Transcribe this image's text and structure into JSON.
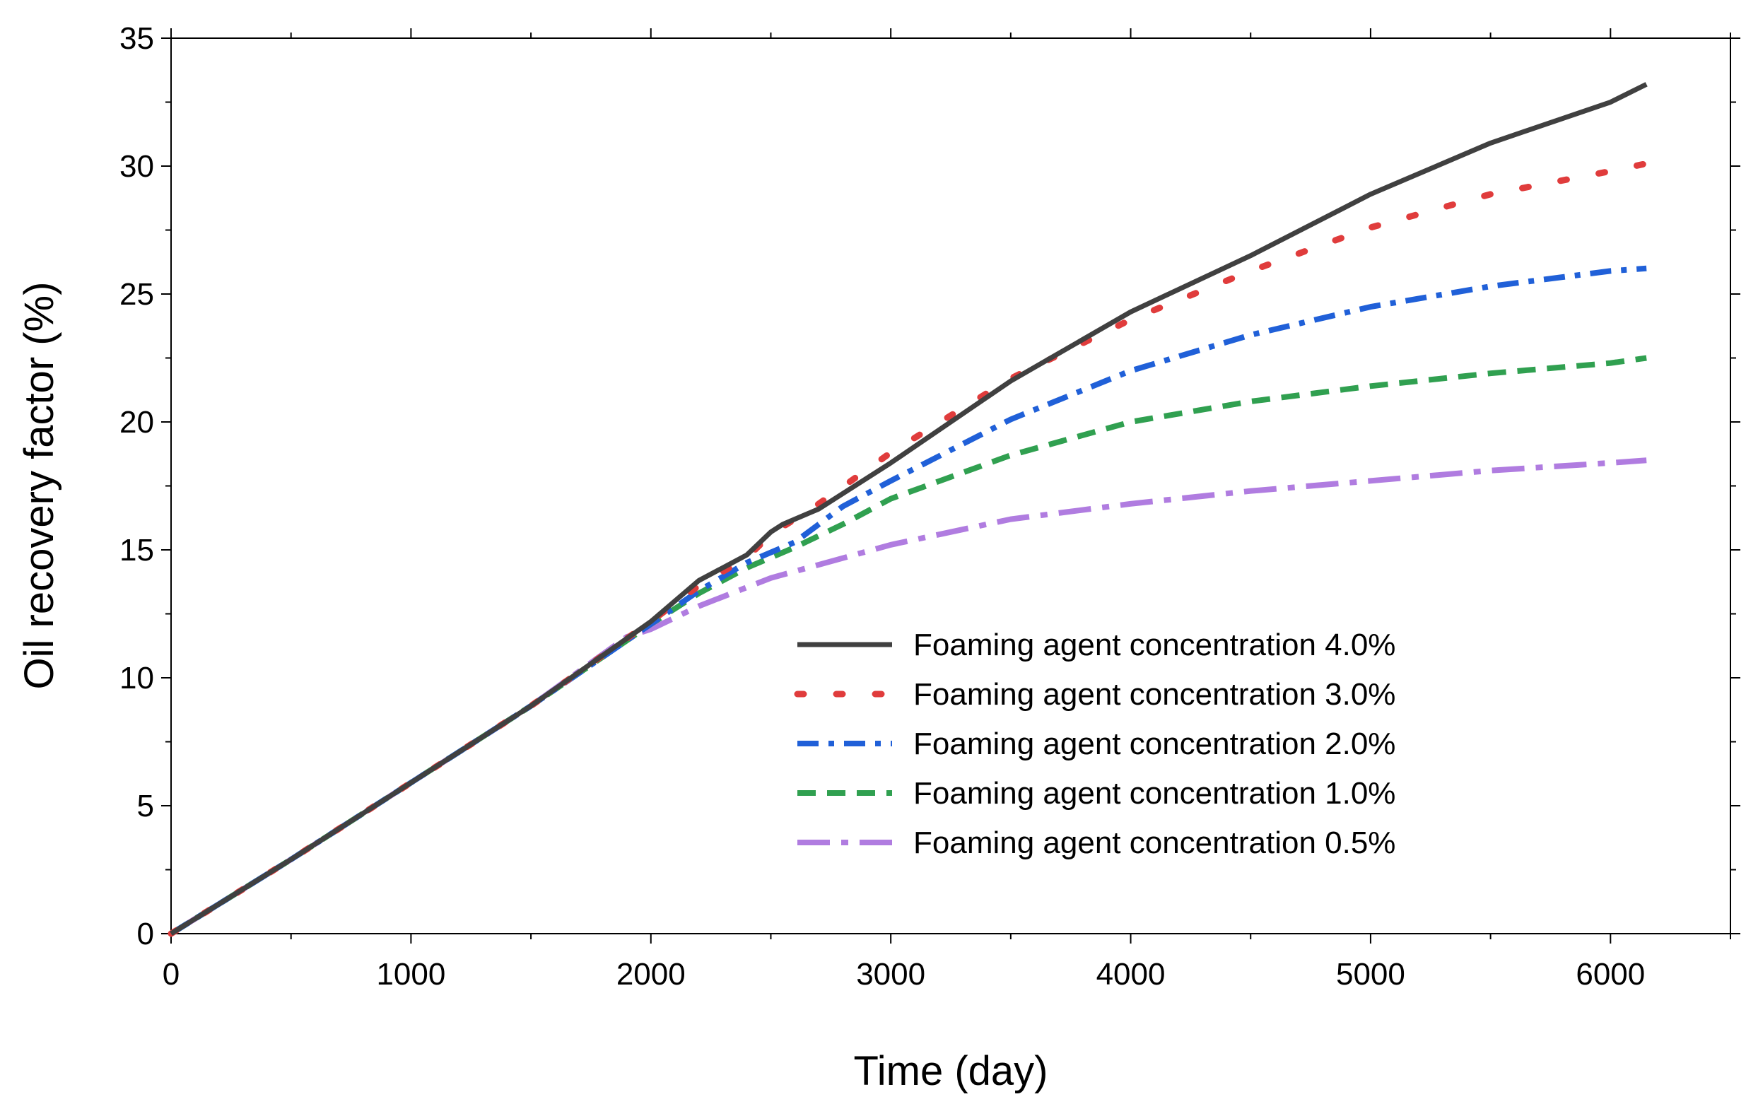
{
  "chart_data": {
    "type": "line",
    "title": "",
    "xlabel": "Time (day)",
    "ylabel": "Oil recovery factor (%)",
    "xlim": [
      0,
      6500
    ],
    "ylim": [
      0,
      35
    ],
    "x_ticks": [
      0,
      1000,
      2000,
      3000,
      4000,
      5000,
      6000
    ],
    "y_ticks": [
      0,
      5,
      10,
      15,
      20,
      25,
      30,
      35
    ],
    "grid": false,
    "legend_position": "center-right",
    "series": [
      {
        "name": "Foaming agent concentration 4.0%",
        "color": "#404040",
        "style": "solid",
        "x": [
          0,
          500,
          1000,
          1500,
          2000,
          2200,
          2400,
          2500,
          2550,
          2700,
          3000,
          3500,
          4000,
          4500,
          5000,
          5500,
          6000,
          6150
        ],
        "y": [
          0,
          2.9,
          5.9,
          8.9,
          12.2,
          13.8,
          14.8,
          15.7,
          16.0,
          16.6,
          18.4,
          21.6,
          24.3,
          26.5,
          28.9,
          30.9,
          32.5,
          33.2
        ]
      },
      {
        "name": "Foaming agent concentration 3.0%",
        "color": "#e03c3c",
        "style": "dotted",
        "x": [
          0,
          500,
          1000,
          1500,
          2000,
          2200,
          2400,
          2500,
          2550,
          2700,
          3000,
          3500,
          4000,
          4500,
          5000,
          5500,
          6000,
          6150
        ],
        "y": [
          0,
          2.9,
          5.9,
          8.9,
          12.2,
          13.6,
          14.7,
          15.6,
          15.9,
          16.8,
          18.8,
          21.7,
          24.0,
          25.9,
          27.6,
          28.9,
          29.8,
          30.1
        ]
      },
      {
        "name": "Foaming agent concentration 2.0%",
        "color": "#2060d8",
        "style": "dashdot",
        "x": [
          0,
          500,
          1000,
          1500,
          2000,
          2200,
          2400,
          2600,
          2800,
          3000,
          3500,
          4000,
          4500,
          5000,
          5500,
          6000,
          6150
        ],
        "y": [
          0,
          2.9,
          5.9,
          8.9,
          12.1,
          13.4,
          14.5,
          15.3,
          16.7,
          17.7,
          20.1,
          22.0,
          23.4,
          24.5,
          25.3,
          25.9,
          26.0
        ]
      },
      {
        "name": "Foaming agent concentration 1.0%",
        "color": "#30a050",
        "style": "dashed",
        "x": [
          0,
          500,
          1000,
          1500,
          2000,
          2200,
          2400,
          2600,
          2800,
          3000,
          3500,
          4000,
          4500,
          5000,
          5500,
          6000,
          6150
        ],
        "y": [
          0,
          2.9,
          5.9,
          8.9,
          12.1,
          13.3,
          14.3,
          15.1,
          16.0,
          17.0,
          18.7,
          20.0,
          20.8,
          21.4,
          21.9,
          22.3,
          22.5
        ]
      },
      {
        "name": "Foaming agent concentration 0.5%",
        "color": "#b07ce0",
        "style": "dashdot-long",
        "x": [
          0,
          500,
          1000,
          1500,
          1900,
          2000,
          2200,
          2500,
          3000,
          3500,
          4000,
          4500,
          5000,
          5500,
          6000,
          6150
        ],
        "y": [
          0,
          2.9,
          5.9,
          8.9,
          11.6,
          11.9,
          12.8,
          13.9,
          15.2,
          16.2,
          16.8,
          17.3,
          17.7,
          18.1,
          18.4,
          18.5
        ]
      }
    ]
  }
}
